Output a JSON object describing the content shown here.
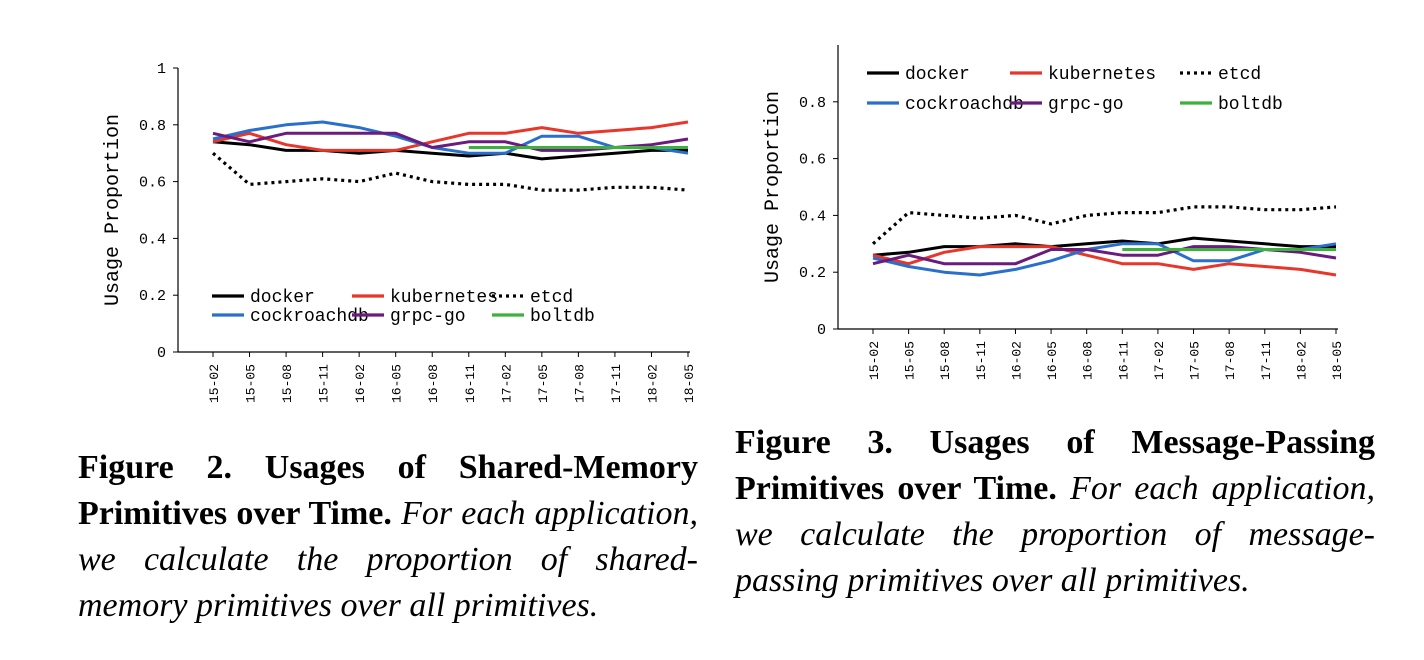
{
  "figures": [
    {
      "caption_title": "Figure 2. Usages of Shared-Memory Primitives over Time.",
      "caption_text": "For each application, we calculate the proportion of shared-memory primitives over all primitives."
    },
    {
      "caption_title": "Figure 3. Usages of Message-Passing Primitives over Time.",
      "caption_text": "For each application, we calculate the proportion of message-passing primitives over all primitives."
    }
  ],
  "chart_data": [
    {
      "type": "line",
      "title": "",
      "xlabel": "",
      "ylabel": "Usage Proportion",
      "ylim": [
        0,
        1
      ],
      "yticks": [
        "0",
        "0.2",
        "0.4",
        "0.6",
        "0.8",
        "1"
      ],
      "grid": false,
      "legend_position": "bottom-center",
      "categories": [
        "15-02",
        "15-05",
        "15-08",
        "15-11",
        "16-02",
        "16-05",
        "16-08",
        "16-11",
        "17-02",
        "17-05",
        "17-08",
        "17-11",
        "18-02",
        "18-05"
      ],
      "series": [
        {
          "name": "docker",
          "color": "#000000",
          "dash": "solid",
          "values": [
            0.74,
            0.73,
            0.71,
            0.71,
            0.7,
            0.71,
            0.7,
            0.69,
            0.7,
            0.68,
            0.69,
            0.7,
            0.71,
            0.71
          ]
        },
        {
          "name": "kubernetes",
          "color": "#e8362a",
          "dash": "solid",
          "values": [
            0.74,
            0.77,
            0.73,
            0.71,
            0.71,
            0.71,
            0.74,
            0.77,
            0.77,
            0.79,
            0.77,
            0.78,
            0.79,
            0.81
          ]
        },
        {
          "name": "etcd",
          "color": "#000000",
          "dash": "dotted",
          "values": [
            0.7,
            0.59,
            0.6,
            0.61,
            0.6,
            0.63,
            0.6,
            0.59,
            0.59,
            0.57,
            0.57,
            0.58,
            0.58,
            0.57
          ]
        },
        {
          "name": "cockroachdb",
          "color": "#2a6fcc",
          "dash": "solid",
          "values": [
            0.75,
            0.78,
            0.8,
            0.81,
            0.79,
            0.76,
            0.72,
            0.7,
            0.7,
            0.76,
            0.76,
            0.72,
            0.72,
            0.7
          ]
        },
        {
          "name": "grpc-go",
          "color": "#6b1a7d",
          "dash": "solid",
          "values": [
            0.77,
            0.74,
            0.77,
            0.77,
            0.77,
            0.77,
            0.72,
            0.74,
            0.74,
            0.71,
            0.71,
            0.72,
            0.73,
            0.75
          ]
        },
        {
          "name": "boltdb",
          "color": "#3bb23b",
          "dash": "solid",
          "values": [
            null,
            null,
            null,
            null,
            null,
            null,
            null,
            0.72,
            0.72,
            0.72,
            0.72,
            0.72,
            0.72,
            0.72
          ]
        }
      ]
    },
    {
      "type": "line",
      "title": "",
      "xlabel": "",
      "ylabel": "Usage Proportion",
      "ylim": [
        0,
        1
      ],
      "yticks": [
        "0",
        "0.2",
        "0.4",
        "0.6",
        "0.8"
      ],
      "grid": false,
      "legend_position": "top-center",
      "categories": [
        "15-02",
        "15-05",
        "15-08",
        "15-11",
        "16-02",
        "16-05",
        "16-08",
        "16-11",
        "17-02",
        "17-05",
        "17-08",
        "17-11",
        "18-02",
        "18-05"
      ],
      "series": [
        {
          "name": "docker",
          "color": "#000000",
          "dash": "solid",
          "values": [
            0.26,
            0.27,
            0.29,
            0.29,
            0.3,
            0.29,
            0.3,
            0.31,
            0.3,
            0.32,
            0.31,
            0.3,
            0.29,
            0.29
          ]
        },
        {
          "name": "kubernetes",
          "color": "#e8362a",
          "dash": "solid",
          "values": [
            0.26,
            0.23,
            0.27,
            0.29,
            0.29,
            0.29,
            0.26,
            0.23,
            0.23,
            0.21,
            0.23,
            0.22,
            0.21,
            0.19
          ]
        },
        {
          "name": "etcd",
          "color": "#000000",
          "dash": "dotted",
          "values": [
            0.3,
            0.41,
            0.4,
            0.39,
            0.4,
            0.37,
            0.4,
            0.41,
            0.41,
            0.43,
            0.43,
            0.42,
            0.42,
            0.43
          ]
        },
        {
          "name": "cockroachdb",
          "color": "#2a6fcc",
          "dash": "solid",
          "values": [
            0.25,
            0.22,
            0.2,
            0.19,
            0.21,
            0.24,
            0.28,
            0.3,
            0.3,
            0.24,
            0.24,
            0.28,
            0.28,
            0.3
          ]
        },
        {
          "name": "grpc-go",
          "color": "#6b1a7d",
          "dash": "solid",
          "values": [
            0.23,
            0.26,
            0.23,
            0.23,
            0.23,
            0.28,
            0.28,
            0.26,
            0.26,
            0.29,
            0.29,
            0.28,
            0.27,
            0.25
          ]
        },
        {
          "name": "boltdb",
          "color": "#3bb23b",
          "dash": "solid",
          "values": [
            null,
            null,
            null,
            null,
            null,
            null,
            null,
            0.28,
            0.28,
            0.28,
            0.28,
            0.28,
            0.28,
            0.28
          ]
        }
      ]
    }
  ]
}
